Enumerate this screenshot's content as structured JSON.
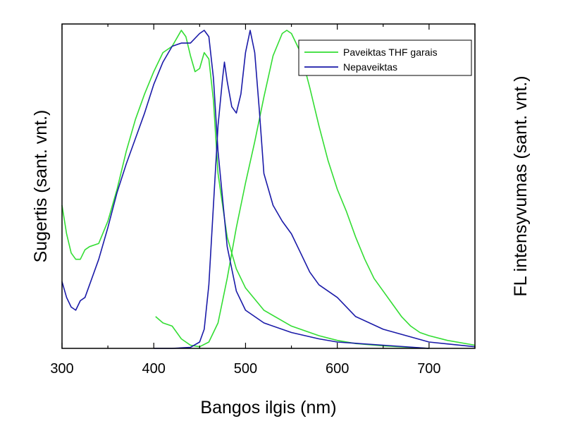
{
  "chart_data": {
    "type": "line",
    "xlabel": "Bangos ilgis (nm)",
    "ylabel_left": "Sugertis (sant. vnt.)",
    "ylabel_right": "FL intensyvumas (sant. vnt.)",
    "xlim": [
      300,
      750
    ],
    "ylim": [
      0,
      1.02
    ],
    "xticks": [
      300,
      400,
      500,
      600,
      700
    ],
    "xtick_labels": [
      "300",
      "400",
      "500",
      "600",
      "700"
    ],
    "grid": false,
    "legend": "top-right",
    "legend_entries": [
      "Paveiktas THF garais",
      "Nepaveiktas"
    ],
    "series": [
      {
        "name": "Paveiktas THF garais",
        "color": "#33dd33",
        "curves": [
          {
            "kind": "absorption",
            "x": [
              300,
              305,
              310,
              315,
              320,
              325,
              330,
              340,
              350,
              360,
              370,
              380,
              390,
              400,
              410,
              420,
              430,
              435,
              440,
              445,
              450,
              455,
              460,
              465,
              470,
              480,
              490,
              500,
              520,
              550,
              580,
              600,
              620,
              650,
              680,
              700
            ],
            "y": [
              0.45,
              0.36,
              0.3,
              0.28,
              0.28,
              0.31,
              0.32,
              0.33,
              0.4,
              0.5,
              0.62,
              0.72,
              0.8,
              0.87,
              0.93,
              0.95,
              1.0,
              0.98,
              0.92,
              0.87,
              0.88,
              0.93,
              0.91,
              0.78,
              0.55,
              0.35,
              0.25,
              0.19,
              0.12,
              0.07,
              0.04,
              0.025,
              0.015,
              0.008,
              0.003,
              0.0
            ]
          },
          {
            "kind": "fluorescence",
            "x": [
              402,
              410,
              420,
              430,
              440,
              450,
              460,
              470,
              480,
              490,
              500,
              510,
              520,
              530,
              540,
              545,
              550,
              560,
              570,
              580,
              590,
              600,
              610,
              620,
              630,
              640,
              650,
              660,
              670,
              680,
              690,
              700,
              720,
              750
            ],
            "y": [
              0.1,
              0.08,
              0.07,
              0.03,
              0.01,
              0.005,
              0.02,
              0.08,
              0.22,
              0.38,
              0.52,
              0.65,
              0.79,
              0.92,
              0.99,
              1.0,
              0.99,
              0.93,
              0.82,
              0.7,
              0.59,
              0.5,
              0.43,
              0.35,
              0.28,
              0.22,
              0.18,
              0.14,
              0.1,
              0.07,
              0.05,
              0.04,
              0.025,
              0.01
            ]
          }
        ]
      },
      {
        "name": "Nepaveiktas",
        "color": "#1a1aa8",
        "curves": [
          {
            "kind": "absorption",
            "x": [
              300,
              305,
              310,
              315,
              320,
              325,
              330,
              340,
              350,
              360,
              370,
              380,
              390,
              400,
              410,
              420,
              430,
              440,
              450,
              455,
              460,
              465,
              470,
              480,
              490,
              500,
              520,
              550,
              580,
              600,
              650,
              700
            ],
            "y": [
              0.21,
              0.16,
              0.13,
              0.12,
              0.15,
              0.16,
              0.2,
              0.28,
              0.38,
              0.49,
              0.58,
              0.66,
              0.74,
              0.83,
              0.9,
              0.95,
              0.96,
              0.96,
              0.99,
              1.0,
              0.98,
              0.85,
              0.62,
              0.32,
              0.18,
              0.12,
              0.08,
              0.05,
              0.03,
              0.02,
              0.01,
              0.0
            ]
          },
          {
            "kind": "fluorescence",
            "x": [
              400,
              420,
              440,
              450,
              455,
              460,
              465,
              470,
              475,
              477,
              480,
              485,
              490,
              495,
              500,
              505,
              510,
              515,
              520,
              530,
              540,
              550,
              560,
              570,
              580,
              600,
              620,
              650,
              700,
              750
            ],
            "y": [
              0.0,
              0.0,
              0.003,
              0.02,
              0.06,
              0.2,
              0.45,
              0.7,
              0.85,
              0.9,
              0.84,
              0.76,
              0.74,
              0.8,
              0.93,
              1.0,
              0.93,
              0.75,
              0.55,
              0.45,
              0.4,
              0.36,
              0.3,
              0.24,
              0.2,
              0.16,
              0.1,
              0.06,
              0.02,
              0.005
            ]
          }
        ]
      }
    ]
  }
}
